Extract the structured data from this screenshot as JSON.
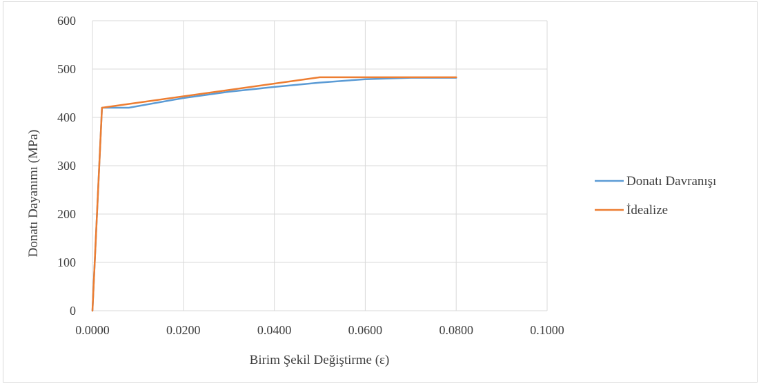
{
  "chart_data": {
    "type": "line",
    "title": "",
    "xlabel": "Birim Şekil Değiştirme (ε)",
    "ylabel": "Donatı Dayanımı (MPa)",
    "xlim": [
      0,
      0.1
    ],
    "ylim": [
      0,
      600
    ],
    "x_ticks": [
      0,
      0.02,
      0.04,
      0.06,
      0.08,
      0.1
    ],
    "x_tick_labels": [
      "0.0000",
      "0.0200",
      "0.0400",
      "0.0600",
      "0.0800",
      "0.1000"
    ],
    "y_ticks": [
      0,
      100,
      200,
      300,
      400,
      500,
      600
    ],
    "y_tick_labels": [
      "0",
      "100",
      "200",
      "300",
      "400",
      "500",
      "600"
    ],
    "grid": true,
    "legend_position": "right",
    "series": [
      {
        "name": "Donatı Davranışı",
        "color": "#5b9bd5",
        "x": [
          0,
          0.0021,
          0.008,
          0.02,
          0.03,
          0.04,
          0.05,
          0.06,
          0.07,
          0.08
        ],
        "y": [
          0,
          420,
          420,
          440,
          453,
          463,
          472,
          479,
          482,
          482
        ]
      },
      {
        "name": "İdealize",
        "color": "#ed7d31",
        "x": [
          0,
          0.0021,
          0.05,
          0.08
        ],
        "y": [
          0,
          420,
          483,
          483
        ]
      }
    ]
  }
}
